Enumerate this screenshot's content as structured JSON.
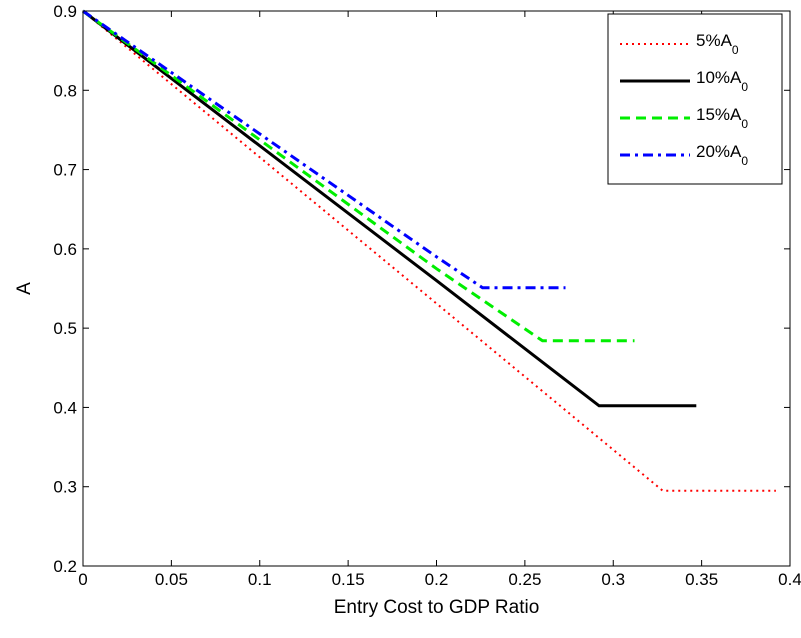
{
  "chart_data": {
    "type": "line",
    "title": "",
    "xlabel": "Entry Cost to GDP Ratio",
    "ylabel": "A",
    "xlim": [
      0,
      0.4
    ],
    "ylim": [
      0.2,
      0.9
    ],
    "xticks": [
      "0",
      "0.05",
      "0.1",
      "0.15",
      "0.2",
      "0.25",
      "0.3",
      "0.35",
      "0.4"
    ],
    "yticks": [
      "0.2",
      "0.3",
      "0.4",
      "0.5",
      "0.6",
      "0.7",
      "0.8",
      "0.9"
    ],
    "grid": false,
    "legend_position": "top-right",
    "series": [
      {
        "name_main": "5%A",
        "name_sub": "0",
        "color": "#ff0000",
        "line_style": "dotted",
        "x": [
          0,
          0.328,
          0.392
        ],
        "y": [
          0.9,
          0.295,
          0.295
        ]
      },
      {
        "name_main": "10%A",
        "name_sub": "0",
        "color": "#000000",
        "line_style": "solid",
        "x": [
          0,
          0.2,
          0.292,
          0.347
        ],
        "y": [
          0.9,
          0.56,
          0.402,
          0.402
        ]
      },
      {
        "name_main": "15%A",
        "name_sub": "0",
        "color": "#00ee00",
        "line_style": "dashed",
        "x": [
          0,
          0.2,
          0.26,
          0.312
        ],
        "y": [
          0.9,
          0.575,
          0.484,
          0.484
        ]
      },
      {
        "name_main": "20%A",
        "name_sub": "0",
        "color": "#0000ff",
        "line_style": "dashdot",
        "x": [
          0,
          0.2,
          0.226,
          0.273
        ],
        "y": [
          0.9,
          0.59,
          0.551,
          0.551
        ]
      }
    ]
  }
}
